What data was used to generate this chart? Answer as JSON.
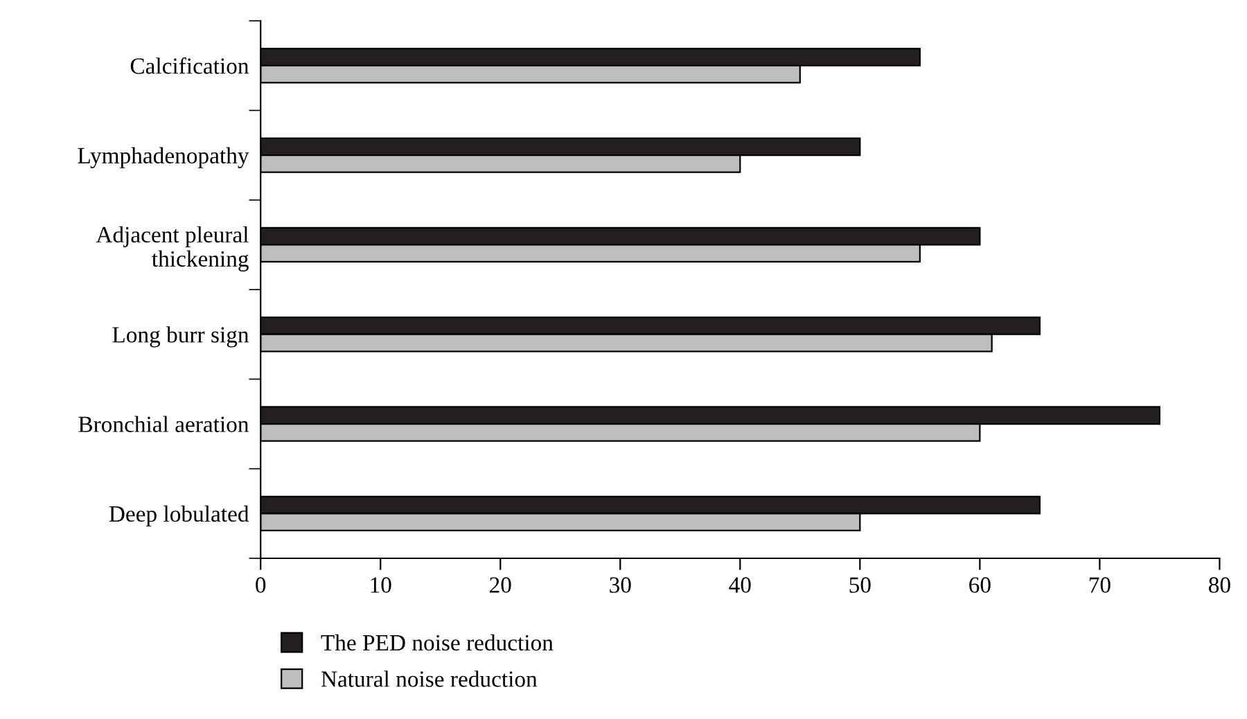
{
  "chart_data": {
    "type": "bar",
    "orientation": "horizontal",
    "categories": [
      "Calcification",
      "Lymphadenopathy",
      "Adjacent pleural\nthickening",
      "Long burr sign",
      "Bronchial aeration",
      "Deep lobulated"
    ],
    "series": [
      {
        "name": "The PED noise reduction",
        "color": "#231f20",
        "values": [
          55,
          50,
          60,
          65,
          75,
          65
        ]
      },
      {
        "name": "Natural noise reduction",
        "color": "#bcbec0",
        "values": [
          45,
          40,
          55,
          61,
          60,
          50
        ]
      }
    ],
    "xlim": [
      0,
      80
    ],
    "xticks": [
      0,
      10,
      20,
      30,
      40,
      50,
      60,
      70,
      80
    ],
    "grid": false,
    "legend": "bottom left"
  }
}
